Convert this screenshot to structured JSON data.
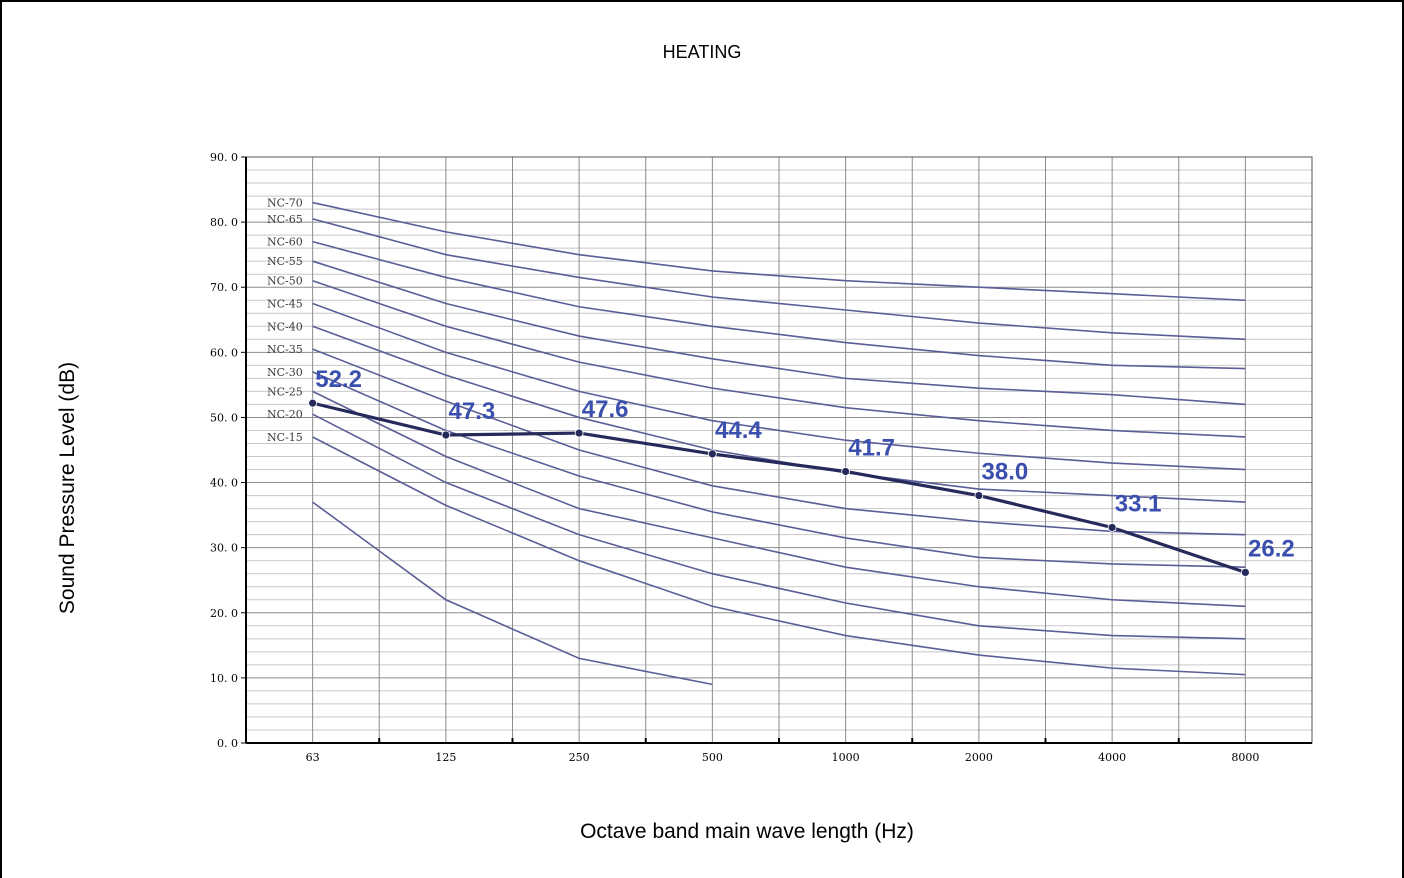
{
  "chart_data": {
    "type": "line",
    "title": "HEATING",
    "xlabel": "Octave band main wave length (Hz)",
    "ylabel": "Sound Pressure Level (dB)",
    "categories": [
      "63",
      "125",
      "250",
      "500",
      "1000",
      "2000",
      "4000",
      "8000"
    ],
    "y_ticks": [
      "0. 0",
      "10. 0",
      "20. 0",
      "30. 0",
      "40. 0",
      "50. 0",
      "60. 0",
      "70. 0",
      "80. 0",
      "90. 0"
    ],
    "ylim": [
      0,
      90
    ],
    "grid": true,
    "nc_curves": [
      {
        "name": "NC-70",
        "values": [
          83,
          78.5,
          75,
          72.5,
          71,
          70,
          69,
          68
        ]
      },
      {
        "name": "NC-65",
        "values": [
          80.5,
          75,
          71.5,
          68.5,
          66.5,
          64.5,
          63,
          62
        ]
      },
      {
        "name": "NC-60",
        "values": [
          77,
          71.5,
          67,
          64,
          61.5,
          59.5,
          58,
          57.5
        ]
      },
      {
        "name": "NC-55",
        "values": [
          74,
          67.5,
          62.5,
          59,
          56,
          54.5,
          53.5,
          52
        ]
      },
      {
        "name": "NC-50",
        "values": [
          71,
          64,
          58.5,
          54.5,
          51.5,
          49.5,
          48,
          47
        ]
      },
      {
        "name": "NC-45",
        "values": [
          67.5,
          60,
          54,
          49.5,
          46.5,
          44.5,
          43,
          42
        ]
      },
      {
        "name": "NC-40",
        "values": [
          64,
          56.5,
          50,
          45,
          41.5,
          39,
          38,
          37
        ]
      },
      {
        "name": "NC-35",
        "values": [
          60.5,
          52.5,
          45,
          39.5,
          36,
          34,
          32.5,
          32
        ]
      },
      {
        "name": "NC-30",
        "values": [
          57,
          48,
          41,
          35.5,
          31.5,
          28.5,
          27.5,
          27
        ]
      },
      {
        "name": "NC-25",
        "values": [
          54,
          44,
          36,
          31.5,
          27,
          24,
          22,
          21
        ]
      },
      {
        "name": "NC-20",
        "values": [
          50.5,
          40,
          32,
          26,
          21.5,
          18,
          16.5,
          16
        ]
      },
      {
        "name": "NC-15",
        "values": [
          47,
          36.5,
          28,
          21,
          16.5,
          13.5,
          11.5,
          10.5
        ]
      },
      {
        "name": "",
        "values": [
          37,
          22,
          13,
          9
        ]
      }
    ],
    "series": [
      {
        "values": [
          52.2,
          47.3,
          47.6,
          44.4,
          41.7,
          38.0,
          33.1,
          26.2
        ]
      }
    ],
    "value_labels": [
      "52.2",
      "47.3",
      "47.6",
      "44.4",
      "41.7",
      "38.0",
      "33.1",
      "26.2"
    ]
  },
  "colors": {
    "nc_line": "#5a5e96",
    "series_line": "#262a5a",
    "value_label": "#3a4fae",
    "grid_major": "#8c8c8c",
    "grid_minor": "#c8c8c8"
  }
}
